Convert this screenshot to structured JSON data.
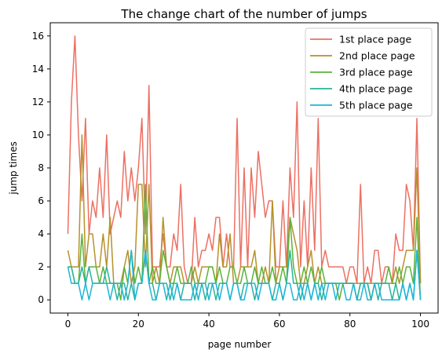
{
  "chart_data": {
    "type": "line",
    "title": "The change chart of the number of jumps",
    "xlabel": "page number",
    "ylabel": "jump times",
    "xlim": [
      -5,
      105
    ],
    "ylim": [
      -0.8,
      16.8
    ],
    "xticks": [
      0,
      20,
      40,
      60,
      80,
      100
    ],
    "yticks": [
      0,
      2,
      4,
      6,
      8,
      10,
      12,
      14,
      16
    ],
    "grid": false,
    "legend_position": "top-right",
    "x": [
      0,
      1,
      2,
      3,
      4,
      5,
      6,
      7,
      8,
      9,
      10,
      11,
      12,
      13,
      14,
      15,
      16,
      17,
      18,
      19,
      20,
      21,
      22,
      23,
      24,
      25,
      26,
      27,
      28,
      29,
      30,
      31,
      32,
      33,
      34,
      35,
      36,
      37,
      38,
      39,
      40,
      41,
      42,
      43,
      44,
      45,
      46,
      47,
      48,
      49,
      50,
      51,
      52,
      53,
      54,
      55,
      56,
      57,
      58,
      59,
      60,
      61,
      62,
      63,
      64,
      65,
      66,
      67,
      68,
      69,
      70,
      71,
      72,
      73,
      74,
      75,
      76,
      77,
      78,
      79,
      80,
      81,
      82,
      83,
      84,
      85,
      86,
      87,
      88,
      89,
      90,
      91,
      92,
      93,
      94,
      95,
      96,
      97,
      98,
      99,
      100
    ],
    "series": [
      {
        "name": "1st place page",
        "color": "#ec7063",
        "values": [
          4,
          12,
          16,
          10,
          6,
          11,
          4,
          6,
          5,
          8,
          5,
          10,
          4,
          5,
          6,
          5,
          9,
          6,
          8,
          6,
          8,
          11,
          4,
          13,
          2,
          2,
          2,
          4,
          2,
          2,
          4,
          3,
          7,
          2,
          1,
          1,
          5,
          2,
          3,
          3,
          4,
          3,
          5,
          5,
          2,
          4,
          2,
          2,
          11,
          2,
          8,
          2,
          8,
          5,
          9,
          7,
          5,
          6,
          6,
          2,
          2,
          6,
          2,
          8,
          5,
          12,
          2,
          6,
          2,
          8,
          3,
          11,
          2,
          3,
          2,
          2,
          2,
          2,
          2,
          1,
          2,
          2,
          1,
          7,
          1,
          2,
          1,
          3,
          3,
          1,
          2,
          2,
          1,
          4,
          3,
          3,
          7,
          6,
          3,
          11,
          1
        ]
      },
      {
        "name": "2nd place page",
        "color": "#b7912b",
        "values": [
          3,
          2,
          2,
          2,
          10,
          2,
          4,
          4,
          2,
          2,
          4,
          2,
          5,
          1,
          1,
          1,
          2,
          3,
          1,
          2,
          7,
          7,
          2,
          7,
          1,
          2,
          1,
          5,
          2,
          1,
          2,
          2,
          2,
          1,
          1,
          1,
          2,
          1,
          2,
          2,
          2,
          2,
          1,
          4,
          2,
          2,
          4,
          1,
          1,
          2,
          2,
          2,
          2,
          3,
          1,
          1,
          2,
          1,
          6,
          1,
          2,
          2,
          2,
          5,
          4,
          3,
          1,
          1,
          2,
          3,
          1,
          2,
          1,
          1,
          1,
          1,
          1,
          1,
          1,
          1,
          1,
          1,
          1,
          1,
          1,
          1,
          1,
          1,
          1,
          1,
          1,
          1,
          1,
          2,
          1,
          2,
          3,
          3,
          3,
          8,
          1
        ]
      },
      {
        "name": "3rd place page",
        "color": "#5bb33b",
        "values": [
          2,
          2,
          1,
          1,
          4,
          1,
          2,
          2,
          2,
          1,
          2,
          1,
          1,
          1,
          1,
          0,
          2,
          1,
          3,
          1,
          2,
          1,
          7,
          1,
          2,
          1,
          1,
          3,
          2,
          1,
          1,
          2,
          1,
          1,
          1,
          2,
          1,
          1,
          1,
          1,
          2,
          2,
          1,
          2,
          1,
          1,
          2,
          2,
          1,
          1,
          2,
          1,
          1,
          2,
          1,
          2,
          1,
          1,
          2,
          1,
          1,
          2,
          1,
          5,
          2,
          1,
          1,
          2,
          1,
          2,
          1,
          1,
          2,
          1,
          1,
          1,
          1,
          0,
          1,
          1,
          1,
          1,
          0,
          1,
          1,
          1,
          0,
          1,
          1,
          1,
          1,
          2,
          1,
          1,
          2,
          1,
          2,
          2,
          1,
          5,
          0
        ]
      },
      {
        "name": "4th place page",
        "color": "#2ab39a",
        "values": [
          2,
          2,
          1,
          1,
          2,
          1,
          2,
          1,
          1,
          1,
          1,
          2,
          1,
          1,
          0,
          1,
          1,
          0,
          1,
          0,
          1,
          1,
          3,
          1,
          1,
          0,
          1,
          1,
          1,
          0,
          1,
          1,
          0,
          1,
          1,
          1,
          0,
          1,
          1,
          0,
          1,
          1,
          0,
          1,
          1,
          1,
          0,
          1,
          1,
          0,
          1,
          1,
          1,
          0,
          1,
          1,
          1,
          1,
          0,
          1,
          1,
          0,
          1,
          3,
          1,
          1,
          0,
          1,
          1,
          0,
          1,
          1,
          0,
          1,
          1,
          1,
          1,
          1,
          1,
          1,
          1,
          1,
          0,
          1,
          1,
          1,
          0,
          1,
          0,
          1,
          1,
          1,
          0,
          1,
          0,
          1,
          0,
          1,
          0,
          3,
          0
        ]
      },
      {
        "name": "5th place page",
        "color": "#1cb6d8",
        "values": [
          2,
          1,
          1,
          1,
          0,
          1,
          0,
          1,
          1,
          1,
          1,
          1,
          0,
          1,
          1,
          1,
          0,
          1,
          3,
          0,
          1,
          1,
          3,
          1,
          0,
          0,
          1,
          1,
          0,
          1,
          0,
          1,
          0,
          0,
          0,
          0,
          1,
          0,
          1,
          1,
          0,
          1,
          1,
          0,
          1,
          1,
          0,
          1,
          1,
          0,
          0,
          1,
          1,
          1,
          0,
          1,
          1,
          1,
          0,
          0,
          1,
          0,
          1,
          1,
          0,
          0,
          1,
          0,
          1,
          0,
          1,
          0,
          1,
          0,
          1,
          1,
          0,
          1,
          1,
          0,
          0,
          1,
          0,
          0,
          1,
          0,
          0,
          1,
          1,
          0,
          0,
          0,
          0,
          0,
          0,
          1,
          0,
          1,
          0,
          3,
          0
        ]
      }
    ]
  }
}
